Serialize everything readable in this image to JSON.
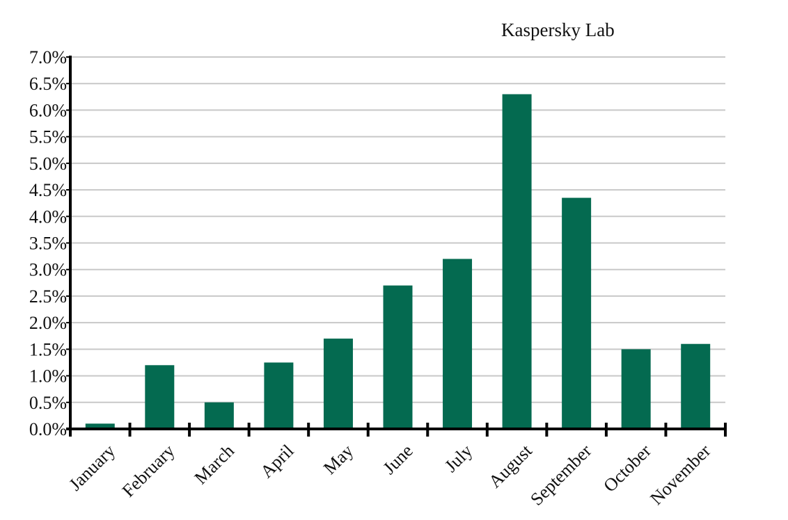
{
  "watermark": "Kaspersky Lab",
  "colors": {
    "bar": "#046a50",
    "grid": "#c8c8c8",
    "axis": "#000000",
    "text": "#111111"
  },
  "chart_data": {
    "type": "bar",
    "title": "",
    "xlabel": "",
    "ylabel": "",
    "categories": [
      "January",
      "February",
      "March",
      "April",
      "May",
      "June",
      "July",
      "August",
      "September",
      "October",
      "November"
    ],
    "values": [
      0.1,
      1.2,
      0.5,
      1.25,
      1.7,
      2.7,
      3.2,
      6.3,
      4.35,
      1.5,
      1.6
    ],
    "ylim": [
      0,
      7
    ],
    "yticks": [
      "0.0%",
      "0.5%",
      "1.0%",
      "1.5%",
      "2.0%",
      "2.5%",
      "3.0%",
      "3.5%",
      "4.0%",
      "4.5%",
      "5.0%",
      "5.5%",
      "6.0%",
      "6.5%",
      "7.0%"
    ],
    "grid": true,
    "legend": "none"
  }
}
